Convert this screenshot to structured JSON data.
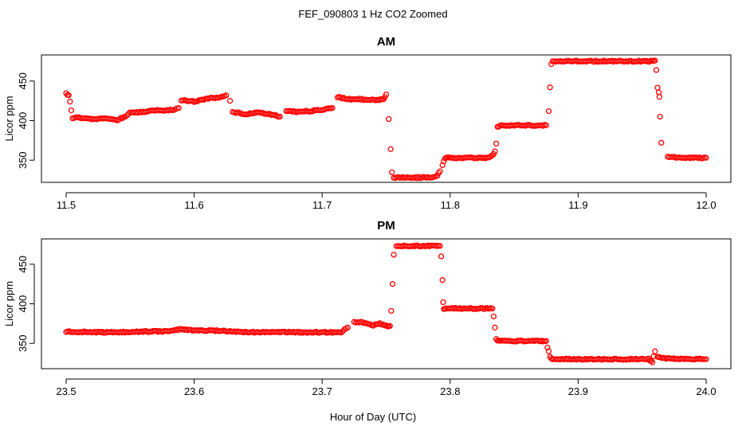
{
  "figure": {
    "title": "FEF_090803  1 Hz CO2 Zoomed",
    "xlabel": "Hour of Day (UTC)"
  },
  "chart_data": [
    {
      "type": "scatter",
      "title": "AM",
      "xlabel": "",
      "ylabel": "Licor ppm",
      "xlim": [
        11.5,
        12.0
      ],
      "ylim": [
        322,
        483
      ],
      "xticks": [
        "11.5",
        "11.6",
        "11.7",
        "11.8",
        "11.9",
        "12.0"
      ],
      "yticks": [
        "350",
        "400",
        "450"
      ],
      "color": "#ff0000",
      "marker": "open-circle",
      "series": [
        {
          "x": [
            11.5,
            11.502,
            11.503,
            11.504,
            11.505,
            11.51,
            11.52,
            11.53,
            11.54,
            11.545,
            11.55,
            11.56,
            11.57,
            11.58,
            11.585,
            11.588,
            11.59,
            11.6,
            11.61,
            11.62,
            11.625,
            11.628,
            11.63,
            11.64,
            11.65,
            11.66,
            11.667,
            11.672,
            11.68,
            11.69,
            11.7,
            11.708,
            11.712,
            11.72,
            11.73,
            11.74,
            11.748,
            11.75,
            11.752,
            11.7535,
            11.7545,
            11.756,
            11.77,
            11.785,
            11.79,
            11.792,
            11.794,
            11.795,
            11.796,
            11.797,
            11.8,
            11.81,
            11.82,
            11.83,
            11.833,
            11.835,
            11.836,
            11.837,
            11.84,
            11.85,
            11.86,
            11.87,
            11.875,
            11.877,
            11.878,
            11.879,
            11.88,
            11.89,
            11.9,
            11.91,
            11.92,
            11.93,
            11.94,
            11.95,
            11.958,
            11.96,
            11.961,
            11.962,
            11.963,
            11.9635,
            11.964,
            11.965,
            11.97,
            11.98,
            11.99,
            12.0
          ],
          "y": [
            434,
            432,
            424,
            413,
            403,
            404,
            402,
            403,
            401,
            404,
            410,
            411,
            413,
            413,
            414,
            416,
            426,
            424,
            428,
            429,
            432,
            425,
            411,
            408,
            410,
            408,
            405,
            412,
            411,
            412,
            414,
            416,
            430,
            427,
            427,
            426,
            427,
            433,
            402,
            364,
            334,
            328,
            328,
            328,
            331,
            336,
            344,
            348,
            352,
            353,
            353,
            353,
            353,
            353,
            356,
            361,
            371,
            392,
            394,
            394,
            394,
            394,
            394,
            412,
            442,
            472,
            475,
            475,
            475,
            475,
            475,
            475,
            475,
            475,
            475,
            476,
            464,
            442,
            436,
            430,
            405,
            372,
            354,
            353,
            353,
            353
          ]
        }
      ]
    },
    {
      "type": "scatter",
      "title": "PM",
      "xlabel": "",
      "ylabel": "Licor ppm",
      "xlim": [
        23.5,
        24.0
      ],
      "ylim": [
        318,
        482
      ],
      "xticks": [
        "23.5",
        "23.6",
        "23.7",
        "23.8",
        "23.9",
        "24.0"
      ],
      "yticks": [
        "350",
        "400",
        "450"
      ],
      "color": "#ff0000",
      "marker": "open-circle",
      "series": [
        {
          "x": [
            23.5,
            23.52,
            23.54,
            23.56,
            23.58,
            23.59,
            23.6,
            23.62,
            23.64,
            23.66,
            23.68,
            23.7,
            23.715,
            23.72,
            23.725,
            23.73,
            23.74,
            23.745,
            23.75,
            23.753,
            23.754,
            23.755,
            23.756,
            23.758,
            23.77,
            23.785,
            23.792,
            23.793,
            23.794,
            23.7945,
            23.795,
            23.797,
            23.81,
            23.825,
            23.833,
            23.834,
            23.835,
            23.836,
            23.837,
            23.84,
            23.86,
            23.875,
            23.876,
            23.877,
            23.878,
            23.88,
            23.9,
            23.92,
            23.94,
            23.955,
            23.958,
            23.959,
            23.96,
            23.962,
            23.97,
            23.99,
            24.0
          ],
          "y": [
            365,
            364,
            364,
            365,
            365,
            368,
            366,
            366,
            364,
            364,
            364,
            364,
            364,
            370,
            377,
            377,
            373,
            375,
            372,
            372,
            391,
            425,
            462,
            473,
            473,
            473,
            473,
            460,
            430,
            402,
            394,
            394,
            394,
            394,
            394,
            384,
            370,
            356,
            353,
            353,
            353,
            353,
            345,
            340,
            333,
            330,
            330,
            330,
            330,
            330,
            326,
            334,
            340,
            333,
            331,
            330,
            330
          ]
        }
      ]
    }
  ]
}
